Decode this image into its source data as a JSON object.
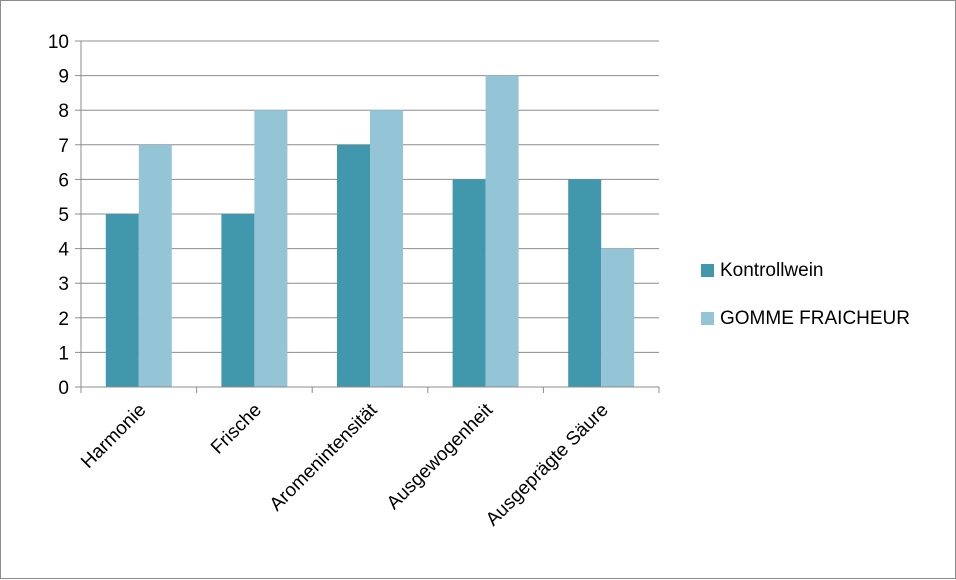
{
  "chart_data": {
    "type": "bar",
    "title": "",
    "xlabel": "",
    "ylabel": "",
    "categories": [
      "Harmonie",
      "Frische",
      "Aromenintensität",
      "Ausgewogenheit",
      "Ausgeprägte Säure"
    ],
    "series": [
      {
        "name": "Kontrollwein",
        "values": [
          5,
          5,
          7,
          6,
          6
        ],
        "color": "#4198ad"
      },
      {
        "name": "GOMME FRAICHEUR",
        "values": [
          7,
          8,
          8,
          9,
          4
        ],
        "color": "#93c5d6"
      }
    ],
    "ylim": [
      0,
      10
    ],
    "yticks": [
      0,
      1,
      2,
      3,
      4,
      5,
      6,
      7,
      8,
      9,
      10
    ],
    "grid": true,
    "gridline_color": "#8c8c8c",
    "legend_position": "right"
  }
}
